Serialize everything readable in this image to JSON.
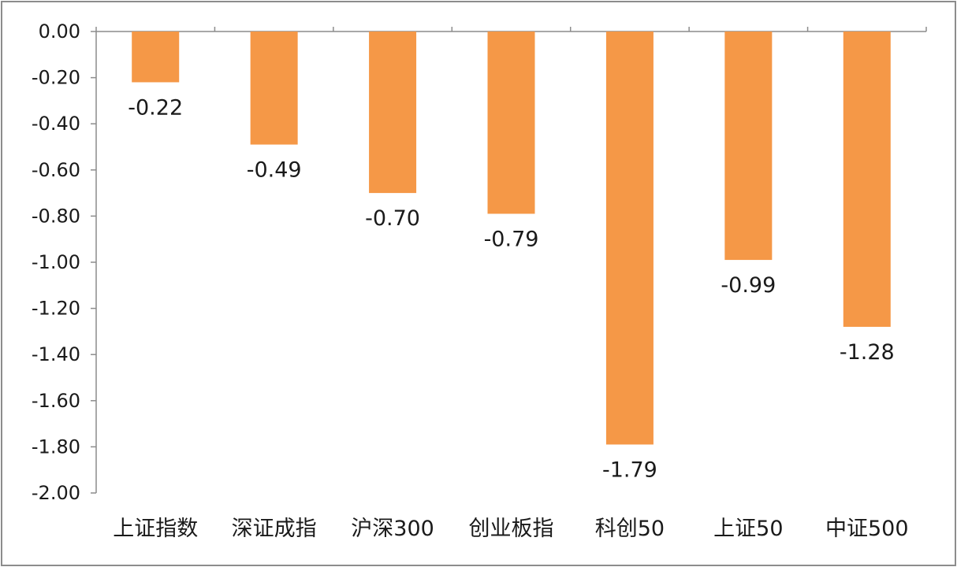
{
  "chart_data": {
    "type": "bar",
    "title": "",
    "xlabel": "",
    "ylabel": "",
    "categories": [
      "上证指数",
      "深证成指",
      "沪深300",
      "创业板指",
      "科创50",
      "上证50",
      "中证500"
    ],
    "values": [
      -0.22,
      -0.49,
      -0.7,
      -0.79,
      -1.79,
      -0.99,
      -1.28
    ],
    "data_labels": [
      "-0.22",
      "-0.49",
      "-0.70",
      "-0.79",
      "-1.79",
      "-0.99",
      "-1.28"
    ],
    "ylim": [
      -2.0,
      0.0
    ],
    "y_ticks": [
      0,
      -0.2,
      -0.4,
      -0.6,
      -0.8,
      -1.0,
      -1.2,
      -1.4,
      -1.6,
      -1.8,
      -2.0
    ],
    "y_tick_labels": [
      "0.00",
      "-0.20",
      "-0.40",
      "-0.60",
      "-0.80",
      "-1.00",
      "-1.20",
      "-1.40",
      "-1.60",
      "-1.80",
      "-2.00"
    ],
    "grid": false,
    "legend": "none",
    "bar_color": "#F59847",
    "axis_color": "#8c8c8c"
  }
}
